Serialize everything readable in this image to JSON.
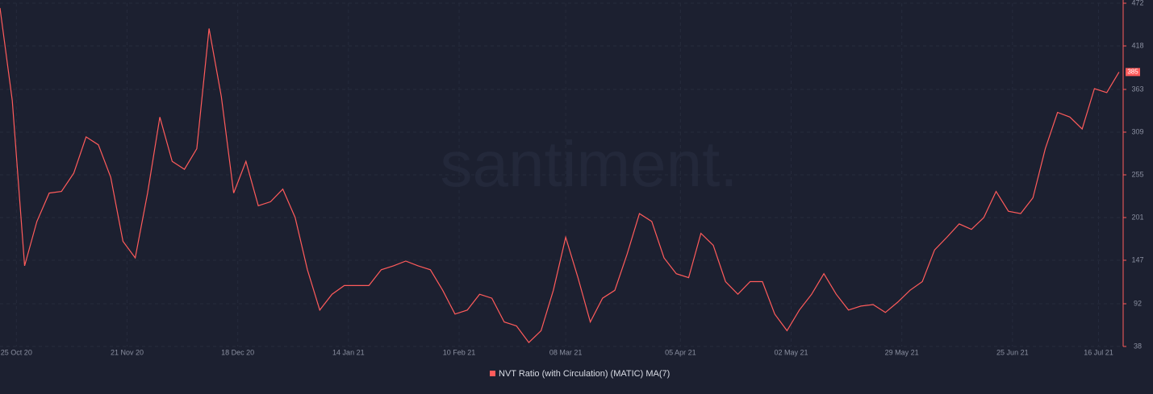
{
  "chart_data": {
    "type": "line",
    "watermark": "santiment.",
    "x": [
      "2020-10-21",
      "2020-10-24",
      "2020-10-27",
      "2020-10-30",
      "2020-11-02",
      "2020-11-05",
      "2020-11-08",
      "2020-11-11",
      "2020-11-14",
      "2020-11-17",
      "2020-11-20",
      "2020-11-23",
      "2020-11-26",
      "2020-11-29",
      "2020-12-02",
      "2020-12-05",
      "2020-12-08",
      "2020-12-11",
      "2020-12-14",
      "2020-12-17",
      "2020-12-20",
      "2020-12-23",
      "2020-12-26",
      "2020-12-29",
      "2021-01-01",
      "2021-01-04",
      "2021-01-07",
      "2021-01-10",
      "2021-01-13",
      "2021-01-16",
      "2021-01-19",
      "2021-01-22",
      "2021-01-25",
      "2021-01-28",
      "2021-01-31",
      "2021-02-03",
      "2021-02-06",
      "2021-02-09",
      "2021-02-12",
      "2021-02-15",
      "2021-02-18",
      "2021-02-21",
      "2021-02-24",
      "2021-02-27",
      "2021-03-02",
      "2021-03-05",
      "2021-03-08",
      "2021-03-11",
      "2021-03-14",
      "2021-03-17",
      "2021-03-20",
      "2021-03-23",
      "2021-03-26",
      "2021-03-29",
      "2021-04-01",
      "2021-04-04",
      "2021-04-07",
      "2021-04-10",
      "2021-04-13",
      "2021-04-16",
      "2021-04-19",
      "2021-04-22",
      "2021-04-25",
      "2021-04-28",
      "2021-05-01",
      "2021-05-04",
      "2021-05-07",
      "2021-05-10",
      "2021-05-13",
      "2021-05-16",
      "2021-05-19",
      "2021-05-22",
      "2021-05-25",
      "2021-05-28",
      "2021-05-31",
      "2021-06-03",
      "2021-06-06",
      "2021-06-09",
      "2021-06-12",
      "2021-06-15",
      "2021-06-18",
      "2021-06-21",
      "2021-06-24",
      "2021-06-27",
      "2021-06-30",
      "2021-07-03",
      "2021-07-06",
      "2021-07-09",
      "2021-07-12",
      "2021-07-15",
      "2021-07-18",
      "2021-07-21"
    ],
    "series": [
      {
        "name": "NVT Ratio (with Circulation) (MATIC) MA(7)",
        "color": "#ff5b5b",
        "values": [
          466,
          349,
          140,
          196,
          232,
          234,
          257,
          303,
          293,
          252,
          171,
          150,
          232,
          328,
          272,
          262,
          288,
          440,
          354,
          232,
          272,
          216,
          221,
          237,
          201,
          135,
          84,
          104,
          115,
          115,
          115,
          135,
          140,
          146,
          140,
          135,
          109,
          79,
          84,
          104,
          99,
          69,
          64,
          43,
          58,
          109,
          176,
          125,
          69,
          99,
          109,
          155,
          206,
          196,
          150,
          130,
          125,
          181,
          166,
          120,
          104,
          120,
          120,
          79,
          58,
          84,
          104,
          130,
          104,
          84,
          89,
          91,
          81,
          94,
          109,
          120,
          160,
          176,
          193,
          186,
          201,
          234,
          209,
          206,
          226,
          288,
          334,
          328,
          313,
          364,
          359,
          385
        ]
      }
    ],
    "xlim": [
      "2020-10-21",
      "2021-07-22"
    ],
    "xticks": [
      {
        "value": "2020-10-25",
        "label": "25 Oct 20"
      },
      {
        "value": "2020-11-21",
        "label": "21 Nov 20"
      },
      {
        "value": "2020-12-18",
        "label": "18 Dec 20"
      },
      {
        "value": "2021-01-14",
        "label": "14 Jan 21"
      },
      {
        "value": "2021-02-10",
        "label": "10 Feb 21"
      },
      {
        "value": "2021-03-08",
        "label": "08 Mar 21"
      },
      {
        "value": "2021-04-05",
        "label": "05 Apr 21"
      },
      {
        "value": "2021-05-02",
        "label": "02 May 21"
      },
      {
        "value": "2021-05-29",
        "label": "29 May 21"
      },
      {
        "value": "2021-06-25",
        "label": "25 Jun 21"
      },
      {
        "value": "2021-07-16",
        "label": "16 Jul 21"
      }
    ],
    "ylim": [
      38,
      472
    ],
    "yticks": [
      38,
      92,
      147,
      201,
      255,
      309,
      363,
      418,
      472
    ],
    "grid": true
  }
}
